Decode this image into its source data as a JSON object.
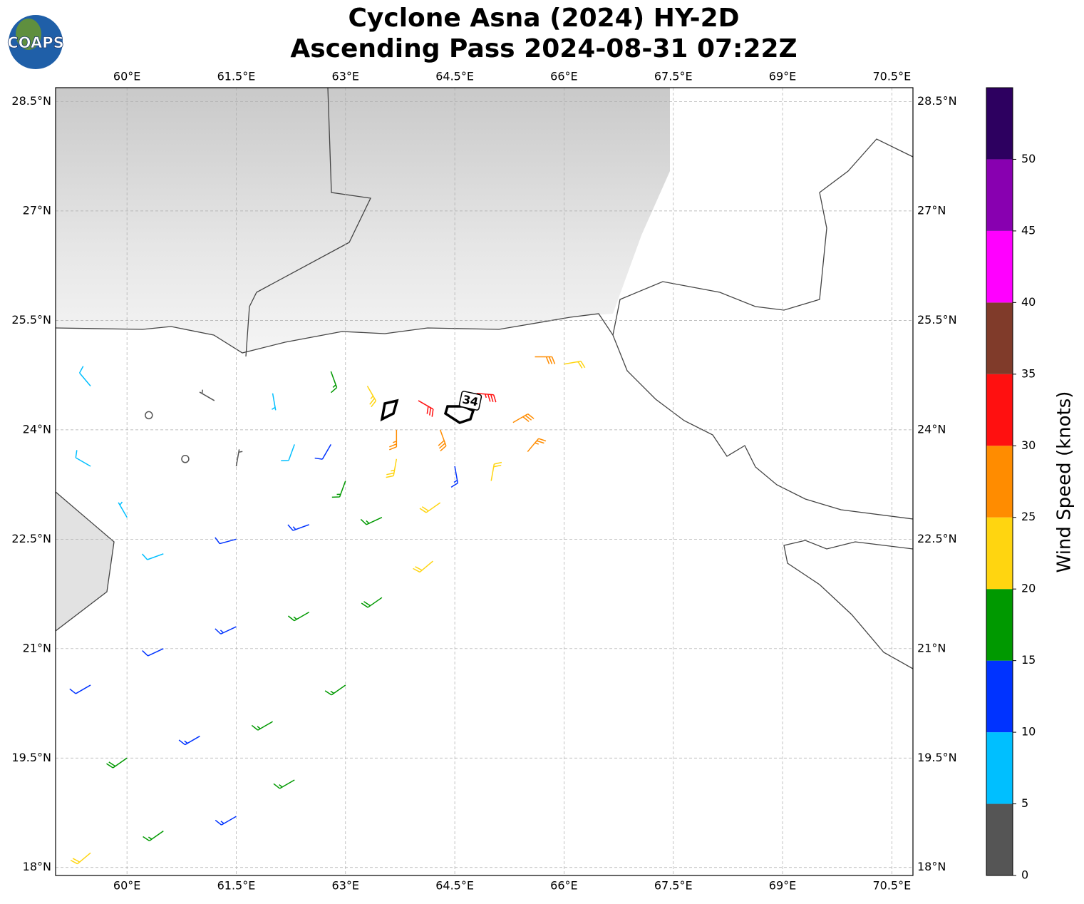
{
  "logo": "COAPS",
  "title": [
    "Cyclone Asna (2024) HY-2D",
    "Ascending Pass 2024-08-31 07:22Z"
  ],
  "map": {
    "xlim": [
      59.02,
      70.79
    ],
    "ylim": [
      17.89,
      28.69
    ],
    "xticks": [
      {
        "value": 60,
        "label": "60°E"
      },
      {
        "value": 61.5,
        "label": "61.5°E"
      },
      {
        "value": 63,
        "label": "63°E"
      },
      {
        "value": 64.5,
        "label": "64.5°E"
      },
      {
        "value": 66,
        "label": "66°E"
      },
      {
        "value": 67.5,
        "label": "67.5°E"
      },
      {
        "value": 69,
        "label": "69°E"
      },
      {
        "value": 70.5,
        "label": "70.5°E"
      }
    ],
    "yticks": [
      {
        "value": 18,
        "label": "18°N"
      },
      {
        "value": 19.5,
        "label": "19.5°N"
      },
      {
        "value": 21,
        "label": "21°N"
      },
      {
        "value": 22.5,
        "label": "22.5°N"
      },
      {
        "value": 24,
        "label": "24°N"
      },
      {
        "value": 25.5,
        "label": "25.5°N"
      },
      {
        "value": 27,
        "label": "27°N"
      },
      {
        "value": 28.5,
        "label": "28.5°N"
      }
    ],
    "grid": true,
    "contour_label": "34",
    "barbs": {
      "lon": [
        59.5,
        60.5,
        61.5,
        62.3,
        60,
        61,
        62,
        63,
        59.5,
        60.5,
        61.5,
        62.5,
        63.5,
        64.2,
        60.5,
        61.5,
        62.5,
        63.5,
        64.3,
        63,
        63.7,
        64.5,
        64.3,
        64,
        64.8,
        65.3,
        65.5,
        65,
        63.7,
        63.3,
        62.8,
        59.5,
        60.3,
        60.8,
        61.2,
        61.5,
        59.5,
        62,
        62.3,
        60,
        62.8,
        66,
        65.6
      ],
      "lat": [
        18.2,
        18.5,
        18.7,
        19.2,
        19.5,
        19.8,
        20,
        20.5,
        20.5,
        21,
        21.3,
        21.5,
        21.7,
        22.2,
        22.3,
        22.5,
        22.7,
        22.8,
        23,
        23.3,
        23.6,
        23.5,
        24,
        24.4,
        24.5,
        24.1,
        23.7,
        23.3,
        24,
        24.6,
        24.8,
        24.6,
        24.2,
        23.6,
        24.4,
        23.5,
        23.5,
        24.5,
        23.8,
        22.8,
        23.8,
        24.9,
        25
      ],
      "speed": [
        22,
        17,
        13,
        15,
        18,
        13,
        16,
        17,
        12,
        12,
        13,
        16,
        18,
        21,
        8,
        11,
        14,
        17,
        22,
        15,
        24,
        13,
        29,
        32,
        33,
        28,
        27,
        21,
        27,
        23,
        17,
        9,
        2,
        2,
        4,
        3,
        8,
        7,
        9,
        6,
        12,
        22,
        28
      ],
      "direction": [
        230,
        235,
        240,
        240,
        235,
        240,
        240,
        235,
        240,
        245,
        245,
        240,
        235,
        230,
        250,
        255,
        250,
        245,
        235,
        200,
        190,
        170,
        160,
        120,
        95,
        60,
        40,
        10,
        180,
        150,
        160,
        320,
        0,
        0,
        300,
        10,
        300,
        170,
        200,
        330,
        210,
        80,
        90
      ]
    }
  },
  "colorbar": {
    "label": "Wind Speed (knots)",
    "bounds": [
      0,
      5,
      10,
      15,
      20,
      25,
      30,
      35,
      40,
      45,
      50,
      55
    ],
    "colors": [
      "#555555",
      "#00bfff",
      "#0033ff",
      "#009900",
      "#ffd510",
      "#ff8c00",
      "#ff1010",
      "#803b2a",
      "#ff00ff",
      "#8800b0",
      "#2d0060"
    ],
    "ticks": [
      0,
      5,
      10,
      15,
      20,
      25,
      30,
      35,
      40,
      45,
      50
    ]
  }
}
